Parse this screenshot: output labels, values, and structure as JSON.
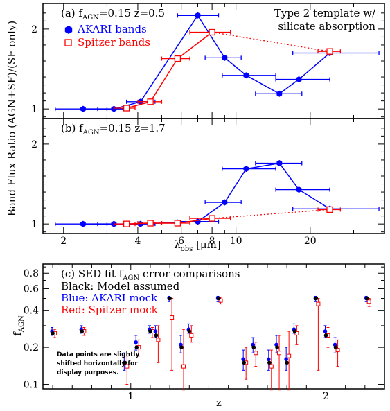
{
  "shared": {
    "ylabel": "Band Flux Ratio (AGN+SF)/(SF only)",
    "xlabel_main": "λ",
    "xlabel_sub": "obs",
    "xlabel_unit": " [μm]",
    "x_ticks_labeled": [
      2,
      4,
      6,
      8,
      10,
      20
    ],
    "x_ticks_minor": [
      3,
      5,
      7,
      9,
      30
    ],
    "xlim": [
      1.65,
      40
    ],
    "ylim": [
      0.88,
      2.32
    ],
    "y_ticks_labeled": [
      1,
      2
    ]
  },
  "chart_data": [
    {
      "type": "line",
      "panel": "a",
      "title_prefix": "(a) f",
      "title_sub": "AGN",
      "title_rest": "=0.15  z=0.5",
      "annotation": [
        "Type 2 template w/",
        "silicate absorption"
      ],
      "legend": [
        {
          "label": "AKARI bands",
          "marker": "filled-hexagon",
          "color": "#0000ff"
        },
        {
          "label": "Spitzer bands",
          "marker": "open-square",
          "color": "#ff0000"
        }
      ],
      "series": [
        {
          "name": "AKARI bands",
          "color": "#0000ff",
          "x": [
            2.4,
            3.2,
            4.1,
            7.0,
            9.0,
            11.0,
            15.0,
            18.0,
            24.0
          ],
          "xerr_lo": [
            1.85,
            2.75,
            3.6,
            5.8,
            7.5,
            8.8,
            12.0,
            14.5,
            17.0
          ],
          "xerr_hi": [
            3.0,
            3.6,
            4.7,
            8.5,
            10.5,
            14.5,
            18.5,
            24.0,
            38.0
          ],
          "y": [
            1.0,
            1.0,
            1.09,
            2.17,
            1.64,
            1.42,
            1.19,
            1.37,
            1.7
          ]
        },
        {
          "name": "Spitzer bands",
          "color": "#ff0000",
          "x": [
            3.6,
            4.5,
            5.8,
            8.0,
            24.0
          ],
          "xerr_lo": [
            3.2,
            4.0,
            5.0,
            6.5,
            21.5
          ],
          "xerr_hi": [
            3.9,
            5.0,
            6.5,
            9.5,
            26.5
          ],
          "y": [
            1.01,
            1.09,
            1.63,
            1.96,
            1.72
          ],
          "dotted_segment": [
            8.0,
            24.0
          ]
        }
      ]
    },
    {
      "type": "line",
      "panel": "b",
      "title_prefix": "(b) f",
      "title_sub": "AGN",
      "title_rest": "=0.15  z=1.7",
      "series": [
        {
          "name": "AKARI bands",
          "color": "#0000ff",
          "x": [
            2.4,
            3.2,
            4.1,
            7.0,
            9.0,
            11.0,
            15.0,
            18.0,
            24.0
          ],
          "xerr_lo": [
            1.85,
            2.75,
            3.6,
            5.8,
            7.5,
            8.8,
            12.0,
            14.5,
            17.0
          ],
          "xerr_hi": [
            3.0,
            3.6,
            4.7,
            8.5,
            10.5,
            14.5,
            18.5,
            24.0,
            38.0
          ],
          "y": [
            1.0,
            1.0,
            1.0,
            1.03,
            1.27,
            1.69,
            1.76,
            1.43,
            1.19
          ]
        },
        {
          "name": "Spitzer bands",
          "color": "#ff0000",
          "x": [
            3.6,
            4.5,
            5.8,
            8.0,
            24.0
          ],
          "xerr_lo": [
            3.2,
            4.0,
            5.0,
            6.5,
            21.5
          ],
          "xerr_hi": [
            3.9,
            5.0,
            6.5,
            9.5,
            26.5
          ],
          "y": [
            1.0,
            1.01,
            1.01,
            1.07,
            1.18
          ],
          "dotted_segment": [
            8.0,
            24.0
          ]
        }
      ]
    },
    {
      "type": "scatter",
      "panel": "c",
      "title_prefix": "(c) SED fit f",
      "title_sub": "AGN",
      "title_rest": " error comparisons",
      "legend_lines": [
        {
          "text": "Black: Model assumed",
          "color": "#000000"
        },
        {
          "text": "Blue: AKARI mock",
          "color": "#0000ff"
        },
        {
          "text": "Red: Spitzer mock",
          "color": "#ff0000"
        }
      ],
      "note": [
        "Data points are slightly",
        "shifted horizontally for",
        "display purposes."
      ],
      "xlabel": "z",
      "ylabel_main": "f",
      "ylabel_sub": "AGN",
      "xlim": [
        0.55,
        2.3
      ],
      "ylim": [
        0.092,
        0.95
      ],
      "x_ticks_labeled": [
        1,
        2
      ],
      "y_ticks_labeled": [
        0.1,
        0.2,
        0.4,
        0.6,
        0.8
      ],
      "model": [
        {
          "z": 0.6,
          "f": 0.26
        },
        {
          "z": 0.75,
          "f": 0.27
        },
        {
          "z": 0.97,
          "f": 0.15
        },
        {
          "z": 1.03,
          "f": 0.2
        },
        {
          "z": 1.1,
          "f": 0.27
        },
        {
          "z": 1.13,
          "f": 0.25
        },
        {
          "z": 1.2,
          "f": 0.5
        },
        {
          "z": 1.26,
          "f": 0.2
        },
        {
          "z": 1.3,
          "f": 0.27
        },
        {
          "z": 1.45,
          "f": 0.5
        },
        {
          "z": 1.58,
          "f": 0.15
        },
        {
          "z": 1.63,
          "f": 0.2
        },
        {
          "z": 1.71,
          "f": 0.15
        },
        {
          "z": 1.75,
          "f": 0.2
        },
        {
          "z": 1.8,
          "f": 0.15
        },
        {
          "z": 1.84,
          "f": 0.27
        },
        {
          "z": 1.95,
          "f": 0.5
        },
        {
          "z": 2.0,
          "f": 0.25
        },
        {
          "z": 2.05,
          "f": 0.2
        },
        {
          "z": 2.21,
          "f": 0.5
        }
      ],
      "akari": [
        {
          "z": 0.6,
          "f": 0.27,
          "lo": 0.25,
          "hi": 0.29
        },
        {
          "z": 0.75,
          "f": 0.28,
          "lo": 0.26,
          "hi": 0.3
        },
        {
          "z": 0.97,
          "f": 0.15,
          "lo": 0.13,
          "hi": 0.18
        },
        {
          "z": 1.03,
          "f": 0.22,
          "lo": 0.19,
          "hi": 0.25
        },
        {
          "z": 1.1,
          "f": 0.28,
          "lo": 0.26,
          "hi": 0.3
        },
        {
          "z": 1.13,
          "f": 0.27,
          "lo": 0.24,
          "hi": 0.3
        },
        {
          "z": 1.2,
          "f": 0.5,
          "lo": 0.47,
          "hi": 0.52
        },
        {
          "z": 1.26,
          "f": 0.21,
          "lo": 0.18,
          "hi": 0.25
        },
        {
          "z": 1.3,
          "f": 0.28,
          "lo": 0.26,
          "hi": 0.31
        },
        {
          "z": 1.45,
          "f": 0.5,
          "lo": 0.47,
          "hi": 0.52
        },
        {
          "z": 1.58,
          "f": 0.16,
          "lo": 0.13,
          "hi": 0.19
        },
        {
          "z": 1.63,
          "f": 0.21,
          "lo": 0.18,
          "hi": 0.24
        },
        {
          "z": 1.71,
          "f": 0.16,
          "lo": 0.13,
          "hi": 0.19
        },
        {
          "z": 1.75,
          "f": 0.21,
          "lo": 0.18,
          "hi": 0.25
        },
        {
          "z": 1.8,
          "f": 0.16,
          "lo": 0.13,
          "hi": 0.2
        },
        {
          "z": 1.84,
          "f": 0.28,
          "lo": 0.26,
          "hi": 0.31
        },
        {
          "z": 1.95,
          "f": 0.5,
          "lo": 0.47,
          "hi": 0.52
        },
        {
          "z": 2.0,
          "f": 0.27,
          "lo": 0.24,
          "hi": 0.3
        },
        {
          "z": 2.05,
          "f": 0.21,
          "lo": 0.18,
          "hi": 0.24
        },
        {
          "z": 2.21,
          "f": 0.5,
          "lo": 0.47,
          "hi": 0.52
        }
      ],
      "spitzer": [
        {
          "z": 0.6,
          "f": 0.26,
          "lo": 0.24,
          "hi": 0.28
        },
        {
          "z": 0.75,
          "f": 0.27,
          "lo": 0.25,
          "hi": 0.29
        },
        {
          "z": 0.97,
          "f": 0.14,
          "lo": 0.1,
          "hi": 0.17
        },
        {
          "z": 1.03,
          "f": 0.2,
          "lo": 0.17,
          "hi": 0.23
        },
        {
          "z": 1.1,
          "f": 0.27,
          "lo": 0.24,
          "hi": 0.29
        },
        {
          "z": 1.13,
          "f": 0.23,
          "lo": 0.15,
          "hi": 0.3
        },
        {
          "z": 1.2,
          "f": 0.35,
          "lo": 0.13,
          "hi": 0.5
        },
        {
          "z": 1.26,
          "f": 0.14,
          "lo": 0.09,
          "hi": 0.28
        },
        {
          "z": 1.3,
          "f": 0.25,
          "lo": 0.22,
          "hi": 0.3
        },
        {
          "z": 1.45,
          "f": 0.48,
          "lo": 0.45,
          "hi": 0.51
        },
        {
          "z": 1.58,
          "f": 0.15,
          "lo": 0.11,
          "hi": 0.2
        },
        {
          "z": 1.63,
          "f": 0.18,
          "lo": 0.14,
          "hi": 0.22
        },
        {
          "z": 1.71,
          "f": 0.14,
          "lo": 0.09,
          "hi": 0.19
        },
        {
          "z": 1.75,
          "f": 0.18,
          "lo": 0.09,
          "hi": 0.25
        },
        {
          "z": 1.8,
          "f": 0.17,
          "lo": 0.09,
          "hi": 0.27
        },
        {
          "z": 1.84,
          "f": 0.26,
          "lo": 0.21,
          "hi": 0.3
        },
        {
          "z": 1.95,
          "f": 0.45,
          "lo": 0.13,
          "hi": 0.5
        },
        {
          "z": 2.0,
          "f": 0.25,
          "lo": 0.2,
          "hi": 0.29
        },
        {
          "z": 2.05,
          "f": 0.19,
          "lo": 0.14,
          "hi": 0.23
        },
        {
          "z": 2.21,
          "f": 0.47,
          "lo": 0.43,
          "hi": 0.5
        }
      ]
    }
  ]
}
